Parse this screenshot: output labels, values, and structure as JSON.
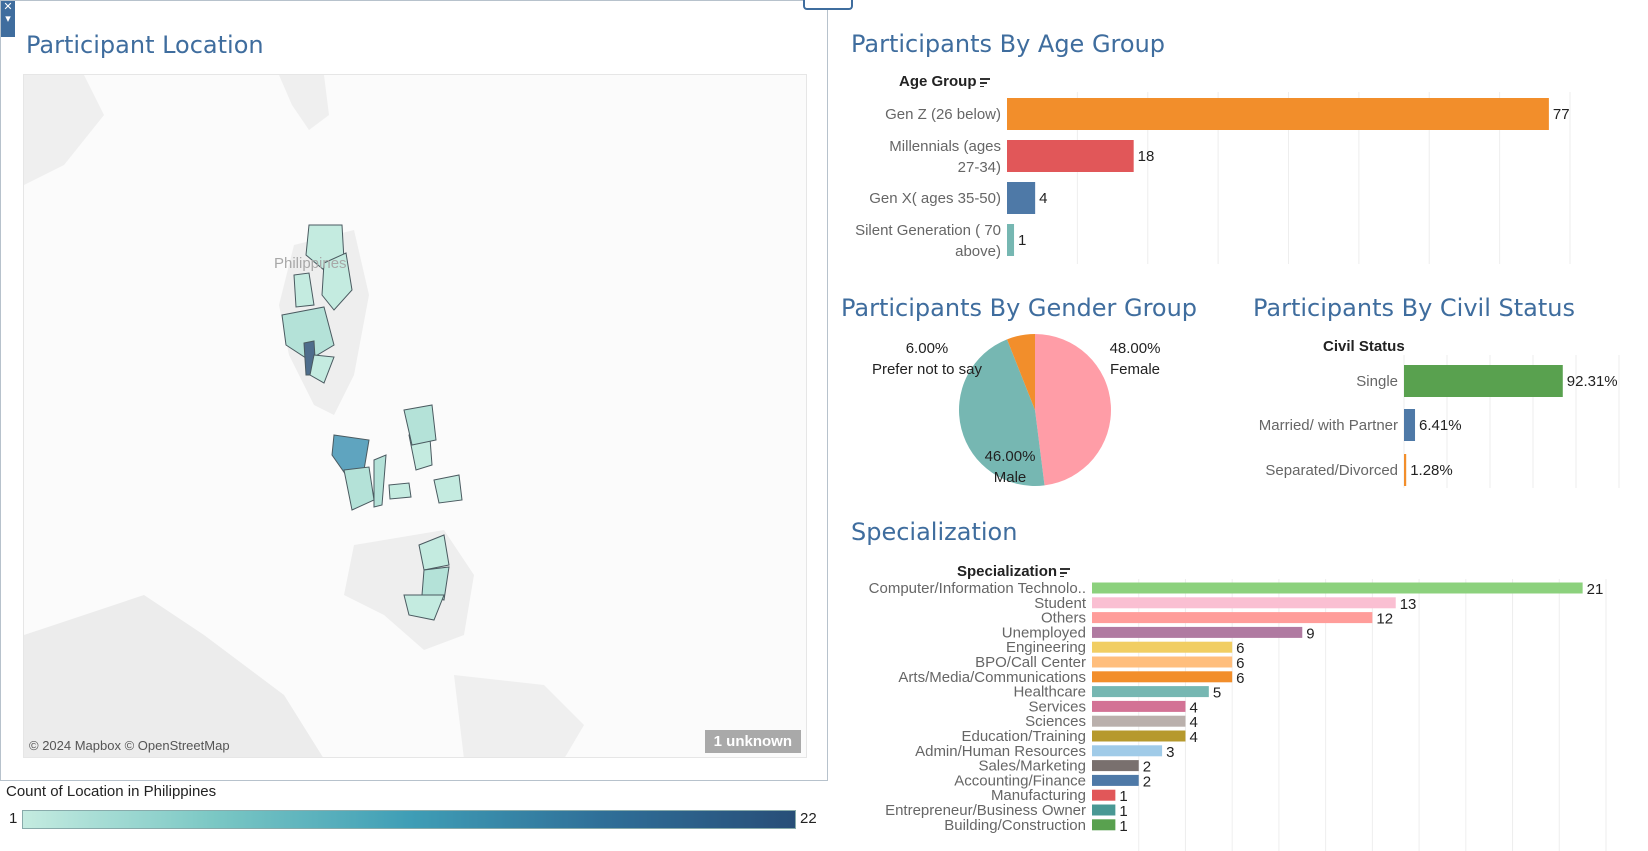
{
  "map_panel": {
    "title": "Participant Location",
    "region_label": "Philippines",
    "credit": "© 2024 Mapbox © OpenStreetMap",
    "unknown_badge": "1 unknown",
    "legend_title": "Count of Location in Philippines",
    "legend_min": "1",
    "legend_max": "22",
    "colors": {
      "low": "#c4ebe0",
      "high": "#284e78"
    }
  },
  "age_chart": {
    "title": "Participants By Age Group",
    "header": "Age Group",
    "chart_data": {
      "type": "bar",
      "orientation": "horizontal",
      "categories": [
        [
          "Gen Z (26 below)"
        ],
        [
          "Millennials (ages",
          "27-34)"
        ],
        [
          "Gen X( ages 35-50)"
        ],
        [
          "Silent Generation ( 70",
          "above)"
        ]
      ],
      "values": [
        77,
        18,
        4,
        1
      ],
      "colors": [
        "#f28e2b",
        "#e15759",
        "#4e79a7",
        "#76b7b2"
      ],
      "xlim": [
        0,
        80
      ],
      "grid": true
    }
  },
  "gender_chart": {
    "title": "Participants By Gender Group",
    "chart_data": {
      "type": "pie",
      "slices": [
        {
          "label": "Female",
          "value": 48.0,
          "display": "48.00%",
          "color": "#ff9da7"
        },
        {
          "label": "Male",
          "value": 46.0,
          "display": "46.00%",
          "color": "#76b7b2"
        },
        {
          "label": "Prefer not to say",
          "value": 6.0,
          "display": "6.00%",
          "color": "#f28e2b"
        }
      ]
    }
  },
  "civil_chart": {
    "title": "Participants By Civil Status",
    "header": "Civil Status",
    "chart_data": {
      "type": "bar",
      "orientation": "horizontal",
      "categories": [
        "Single",
        "Married/ with Partner",
        "Separated/Divorced"
      ],
      "values": [
        92.31,
        6.41,
        1.28
      ],
      "labels": [
        "92.31%",
        "6.41%",
        "1.28%"
      ],
      "colors": [
        "#59a14f",
        "#4e79a7",
        "#f28e2b"
      ],
      "xlim": [
        0,
        100
      ],
      "grid": true
    }
  },
  "specialization_chart": {
    "title": "Specialization",
    "header": "Specialization",
    "chart_data": {
      "type": "bar",
      "orientation": "horizontal",
      "categories": [
        "Computer/Information Technolo..",
        "Student",
        "Others",
        "Unemployed",
        "Engineering",
        "BPO/Call Center",
        "Arts/Media/Communications",
        "Healthcare",
        "Services",
        "Sciences",
        "Education/Training",
        "Admin/Human Resources",
        "Sales/Marketing",
        "Accounting/Finance",
        "Manufacturing",
        "Entrepreneur/Business Owner",
        "Building/Construction"
      ],
      "values": [
        21,
        13,
        12,
        9,
        6,
        6,
        6,
        5,
        4,
        4,
        4,
        3,
        2,
        2,
        1,
        1,
        1
      ],
      "colors": [
        "#8cd17d",
        "#fabfd2",
        "#ff9d9a",
        "#b07aa1",
        "#f1ce63",
        "#ffbe7d",
        "#f28e2b",
        "#76b7b2",
        "#d37295",
        "#bab0ac",
        "#b6992d",
        "#a0cbe8",
        "#79706e",
        "#4e79a7",
        "#e15759",
        "#499894",
        "#59a14f"
      ],
      "xlim": [
        0,
        22
      ],
      "grid": true
    }
  }
}
